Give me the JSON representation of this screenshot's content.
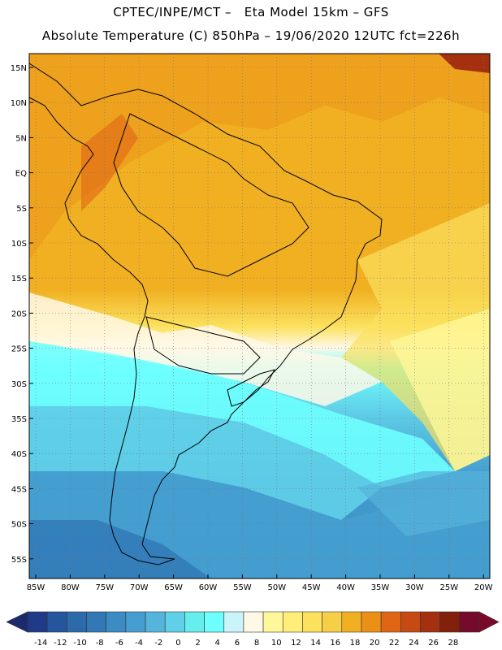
{
  "header": {
    "title_line1": "CPTEC/INPE/MCT –   Eta Model 15km – GFS",
    "title_line2": "Absolute Temperature (C) 850hPa – 19/06/2020 12UTC fct=226h"
  },
  "axes": {
    "lat_labels": [
      "15N",
      "10N",
      "5N",
      "EQ",
      "5S",
      "10S",
      "15S",
      "20S",
      "25S",
      "30S",
      "35S",
      "40S",
      "45S",
      "50S",
      "55S"
    ],
    "lon_labels": [
      "85W",
      "80W",
      "75W",
      "70W",
      "65W",
      "60W",
      "55W",
      "50W",
      "45W",
      "40W",
      "35W",
      "30W",
      "25W",
      "20W"
    ]
  },
  "colorbar": {
    "labels": [
      "-14",
      "-12",
      "-10",
      "-8",
      "-6",
      "-4",
      "-2",
      "0",
      "2",
      "4",
      "6",
      "8",
      "10",
      "12",
      "14",
      "16",
      "18",
      "20",
      "22",
      "24",
      "26",
      "28"
    ],
    "colors": [
      "#1f3a86",
      "#25559c",
      "#2c6aaa",
      "#3178b5",
      "#3a8cc3",
      "#459ecf",
      "#55b4dc",
      "#60d0e8",
      "#66eeee",
      "#6effff",
      "#c8f4fa",
      "#fff8e6",
      "#fff89a",
      "#ffef7a",
      "#fbe15e",
      "#f6cf46",
      "#f1b022",
      "#ea9017",
      "#e06615",
      "#c74a14",
      "#a4300f",
      "#82200c",
      "#760a2c"
    ]
  },
  "legend_scale": {
    "low": "#1a2a6c",
    "high": "#7a0a2a"
  }
}
